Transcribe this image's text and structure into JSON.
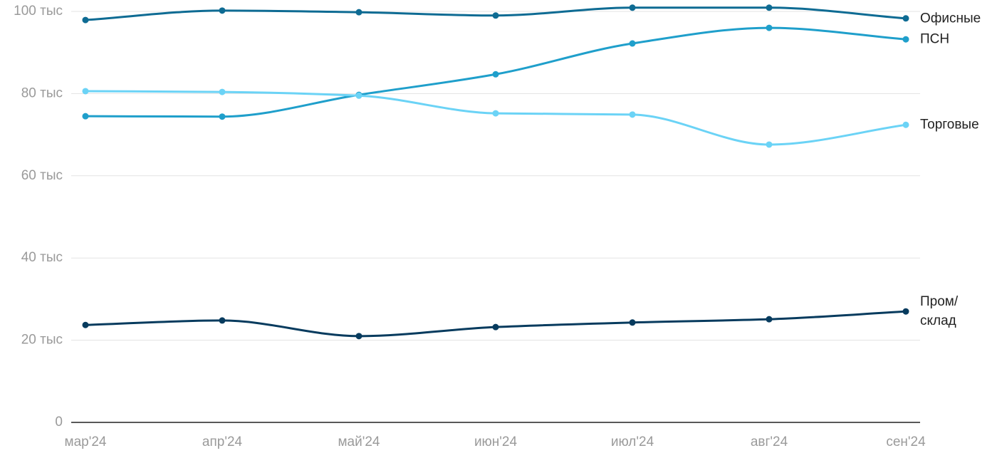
{
  "chart_data": {
    "type": "line",
    "categories": [
      "мар'24",
      "апр'24",
      "май'24",
      "июн'24",
      "июл'24",
      "авг'24",
      "сен'24"
    ],
    "series": [
      {
        "name": "Офисные",
        "color": "#0e6b93",
        "values": [
          97.9,
          100.2,
          99.8,
          99.0,
          100.9,
          100.9,
          98.3
        ]
      },
      {
        "name": "ПСН",
        "color": "#1f9fcb",
        "values": [
          74.5,
          74.4,
          79.7,
          84.7,
          92.2,
          96.0,
          93.2
        ]
      },
      {
        "name": "Торговые",
        "color": "#6bd3f6",
        "values": [
          80.6,
          80.4,
          79.5,
          75.2,
          74.9,
          67.6,
          72.4
        ]
      },
      {
        "name": "Пром/ склад",
        "color": "#073b5e",
        "values": [
          23.7,
          24.8,
          21.0,
          23.2,
          24.3,
          25.1,
          27.0
        ]
      }
    ],
    "ylim": [
      0,
      100
    ],
    "yticks": [
      0,
      {
        "value": 20,
        "label": "20 тыс"
      },
      {
        "value": 40,
        "label": "40 тыс"
      },
      {
        "value": 60,
        "label": "60 тыс"
      },
      {
        "value": 80,
        "label": "80 тыс"
      },
      {
        "value": 100,
        "label": "100 тыс"
      }
    ],
    "grid": true
  }
}
